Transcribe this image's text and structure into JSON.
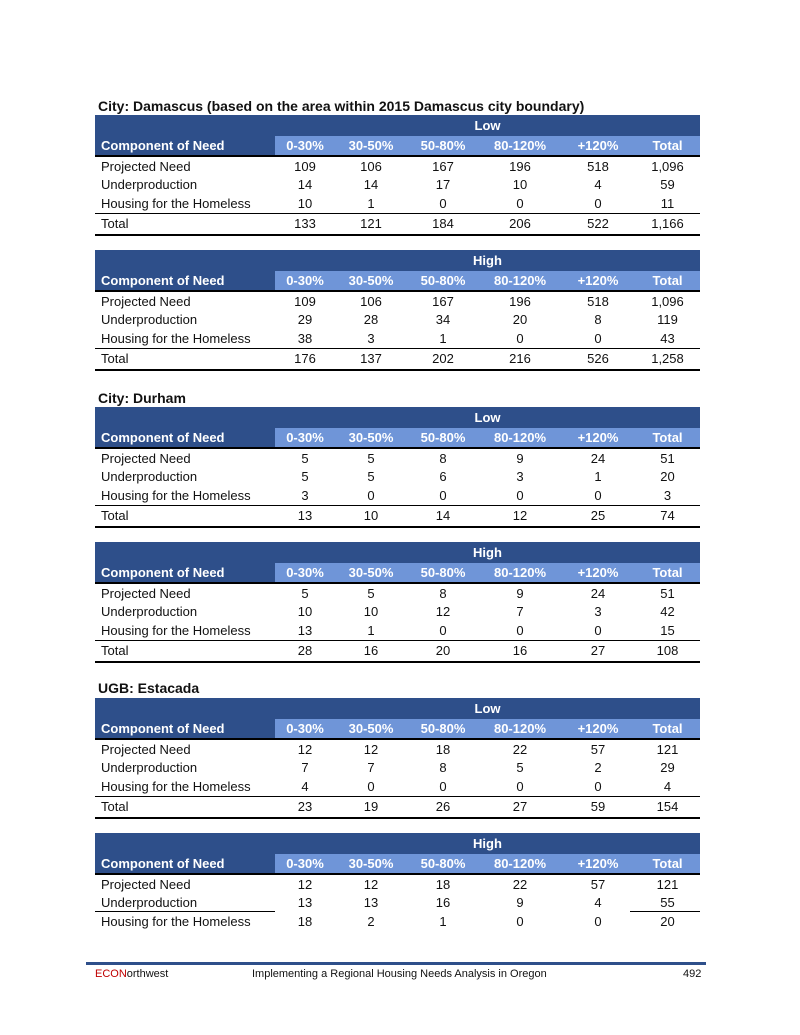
{
  "columns": [
    "Component of Need",
    "0-30%",
    "30-50%",
    "50-80%",
    "80-120%",
    "+120%",
    "Total"
  ],
  "sections": [
    {
      "title": "City: Damascus (based on the area within 2015 Damascus city boundary)"
    },
    {
      "title": "City: Durham"
    },
    {
      "title": "UGB: Estacada"
    }
  ],
  "tables": [
    {
      "scenario": "Low",
      "rows": [
        [
          "Projected Need",
          "109",
          "106",
          "167",
          "196",
          "518",
          "1,096"
        ],
        [
          "Underproduction",
          "14",
          "14",
          "17",
          "10",
          "4",
          "59"
        ],
        [
          "Housing for the Homeless",
          "10",
          "1",
          "0",
          "0",
          "0",
          "11"
        ]
      ],
      "total": [
        "Total",
        "133",
        "121",
        "184",
        "206",
        "522",
        "1,166"
      ]
    },
    {
      "scenario": "High",
      "rows": [
        [
          "Projected Need",
          "109",
          "106",
          "167",
          "196",
          "518",
          "1,096"
        ],
        [
          "Underproduction",
          "29",
          "28",
          "34",
          "20",
          "8",
          "119"
        ],
        [
          "Housing for the Homeless",
          "38",
          "3",
          "1",
          "0",
          "0",
          "43"
        ]
      ],
      "total": [
        "Total",
        "176",
        "137",
        "202",
        "216",
        "526",
        "1,258"
      ]
    },
    {
      "scenario": "Low",
      "rows": [
        [
          "Projected Need",
          "5",
          "5",
          "8",
          "9",
          "24",
          "51"
        ],
        [
          "Underproduction",
          "5",
          "5",
          "6",
          "3",
          "1",
          "20"
        ],
        [
          "Housing for the Homeless",
          "3",
          "0",
          "0",
          "0",
          "0",
          "3"
        ]
      ],
      "total": [
        "Total",
        "13",
        "10",
        "14",
        "12",
        "25",
        "74"
      ]
    },
    {
      "scenario": "High",
      "rows": [
        [
          "Projected Need",
          "5",
          "5",
          "8",
          "9",
          "24",
          "51"
        ],
        [
          "Underproduction",
          "10",
          "10",
          "12",
          "7",
          "3",
          "42"
        ],
        [
          "Housing for the Homeless",
          "13",
          "1",
          "0",
          "0",
          "0",
          "15"
        ]
      ],
      "total": [
        "Total",
        "28",
        "16",
        "20",
        "16",
        "27",
        "108"
      ]
    },
    {
      "scenario": "Low",
      "rows": [
        [
          "Projected Need",
          "12",
          "12",
          "18",
          "22",
          "57",
          "121"
        ],
        [
          "Underproduction",
          "7",
          "7",
          "8",
          "5",
          "2",
          "29"
        ],
        [
          "Housing for the Homeless",
          "4",
          "0",
          "0",
          "0",
          "0",
          "4"
        ]
      ],
      "total": [
        "Total",
        "23",
        "19",
        "26",
        "27",
        "59",
        "154"
      ]
    },
    {
      "scenario": "High",
      "rows": [
        [
          "Projected Need",
          "12",
          "12",
          "18",
          "22",
          "57",
          "121"
        ],
        [
          "Underproduction",
          "13",
          "13",
          "16",
          "9",
          "4",
          "55"
        ],
        [
          "Housing for the Homeless",
          "18",
          "2",
          "1",
          "0",
          "0",
          "20"
        ]
      ]
    }
  ],
  "footer": {
    "brand_red": "ECON",
    "brand_rest": "orthwest",
    "title": "Implementing a Regional Housing Needs Analysis in Oregon",
    "page": "492"
  },
  "colors": {
    "dark_header": "#2e4f8a",
    "light_header": "#6f95d8",
    "brand_red": "#c00000"
  }
}
